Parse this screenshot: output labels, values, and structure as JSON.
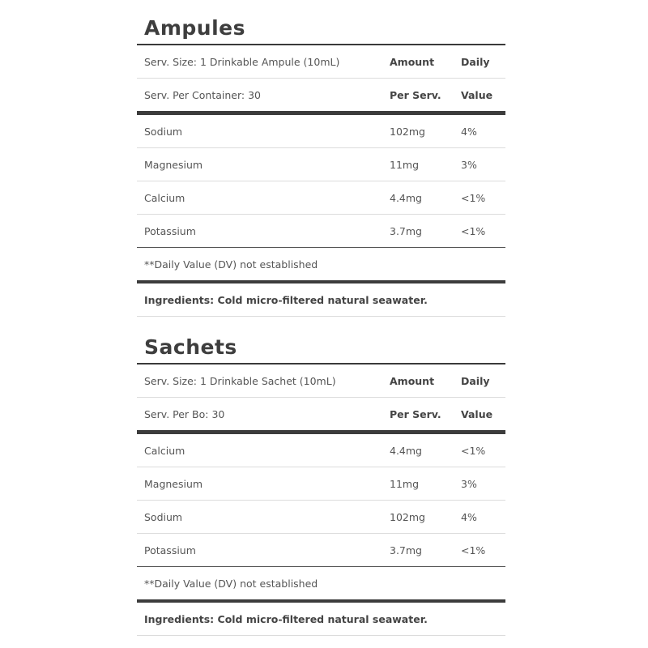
{
  "sections": [
    {
      "title": "Ampules",
      "serving_size": "Serv. Size: 1 Drinkable Ampule (10mL)",
      "servings_per": "Serv. Per Container: 30",
      "header_amount_1": "Amount",
      "header_amount_2": "Per Serv.",
      "header_daily_1": "Daily",
      "header_daily_2": "Value",
      "nutrients": [
        {
          "name": "Sodium",
          "amount": "102mg",
          "dv": "4%"
        },
        {
          "name": "Magnesium",
          "amount": "11mg",
          "dv": "3%"
        },
        {
          "name": "Calcium",
          "amount": "4.4mg",
          "dv": "<1%"
        },
        {
          "name": "Potassium",
          "amount": "3.7mg",
          "dv": "<1%"
        }
      ],
      "footnote": "**Daily Value (DV) not established",
      "ingredients": "Ingredients: Cold micro-filtered natural seawater."
    },
    {
      "title": "Sachets",
      "serving_size": "Serv. Size: 1 Drinkable Sachet (10mL)",
      "servings_per": "Serv. Per Bo: 30",
      "header_amount_1": "Amount",
      "header_amount_2": "Per Serv.",
      "header_daily_1": "Daily",
      "header_daily_2": "Value",
      "nutrients": [
        {
          "name": "Calcium",
          "amount": "4.4mg",
          "dv": "<1%"
        },
        {
          "name": "Magnesium",
          "amount": "11mg",
          "dv": "3%"
        },
        {
          "name": "Sodium",
          "amount": "102mg",
          "dv": "4%"
        },
        {
          "name": "Potassium",
          "amount": "3.7mg",
          "dv": "<1%"
        }
      ],
      "footnote": "**Daily Value (DV) not established",
      "ingredients": "Ingredients: Cold micro-filtered natural seawater."
    }
  ]
}
